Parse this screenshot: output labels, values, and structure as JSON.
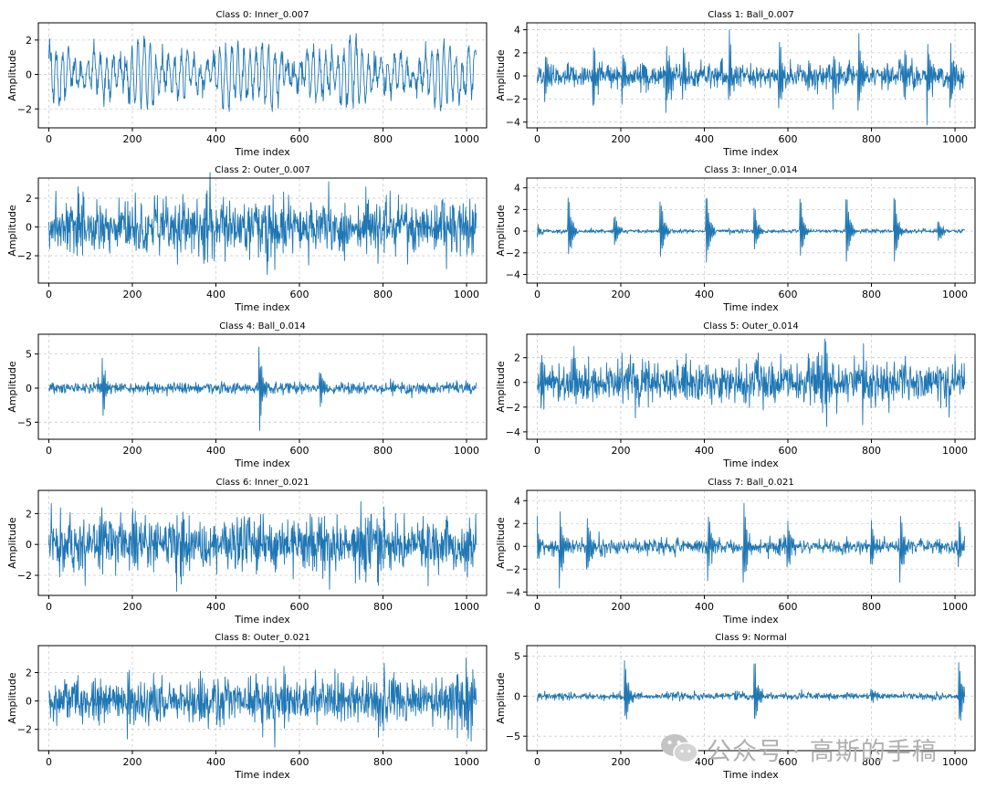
{
  "figure": {
    "watermark_text": "公众号 · 高斯的手稿",
    "colors": {
      "line": "#1f77b4",
      "grid": "#cccccc",
      "axes": "#000000"
    }
  },
  "chart_data": [
    {
      "type": "line",
      "title": "Class 0: Inner_0.007",
      "xlabel": "Time index",
      "ylabel": "Amplitude",
      "xlim": [
        -25,
        1048
      ],
      "ylim": [
        -3.1,
        3.0
      ],
      "xticks": [
        0,
        200,
        400,
        600,
        800,
        1000
      ],
      "yticks": [
        -2,
        0,
        2
      ],
      "grid": true,
      "n_points": 1024,
      "signal": {
        "kind": "sinusoidal",
        "amp": 1.0,
        "noise": 0.9,
        "bursts": []
      }
    },
    {
      "type": "line",
      "title": "Class 1: Ball_0.007",
      "xlabel": "Time index",
      "ylabel": "Amplitude",
      "xlim": [
        -25,
        1048
      ],
      "ylim": [
        -4.5,
        4.6
      ],
      "xticks": [
        0,
        200,
        400,
        600,
        800,
        1000
      ],
      "yticks": [
        -4,
        -2,
        0,
        2,
        4
      ],
      "grid": true,
      "n_points": 1024,
      "signal": {
        "kind": "noise",
        "amp": 0.55,
        "noise": 0.3,
        "bursts": [
          [
            20,
            2.0
          ],
          [
            135,
            3.1
          ],
          [
            205,
            2.4
          ],
          [
            310,
            4.0
          ],
          [
            350,
            2.6
          ],
          [
            460,
            3.0
          ],
          [
            580,
            3.7
          ],
          [
            650,
            2.4
          ],
          [
            710,
            2.6
          ],
          [
            770,
            4.3
          ],
          [
            880,
            2.8
          ],
          [
            935,
            3.6
          ],
          [
            990,
            3.3
          ]
        ]
      }
    },
    {
      "type": "line",
      "title": "Class 2: Outer_0.007",
      "xlabel": "Time index",
      "ylabel": "Amplitude",
      "xlim": [
        -25,
        1048
      ],
      "ylim": [
        -3.9,
        3.4
      ],
      "xticks": [
        0,
        200,
        400,
        600,
        800,
        1000
      ],
      "yticks": [
        -2,
        0,
        2
      ],
      "grid": true,
      "n_points": 1024,
      "signal": {
        "kind": "noise",
        "amp": 1.0,
        "noise": 0.5,
        "bursts": [
          [
            70,
            1.6
          ],
          [
            300,
            1.2
          ],
          [
            480,
            1.0
          ],
          [
            560,
            1.2
          ],
          [
            760,
            2.7
          ],
          [
            870,
            1.4
          ],
          [
            995,
            1.2
          ]
        ]
      }
    },
    {
      "type": "line",
      "title": "Class 3: Inner_0.014",
      "xlabel": "Time index",
      "ylabel": "Amplitude",
      "xlim": [
        -25,
        1048
      ],
      "ylim": [
        -4.8,
        4.9
      ],
      "xticks": [
        0,
        200,
        400,
        600,
        800,
        1000
      ],
      "yticks": [
        -4,
        -2,
        0,
        2,
        4
      ],
      "grid": true,
      "n_points": 1024,
      "signal": {
        "kind": "noise",
        "amp": 0.1,
        "noise": 0.06,
        "bursts": [
          [
            0,
            0.8
          ],
          [
            75,
            3.5
          ],
          [
            185,
            2.0
          ],
          [
            295,
            3.8
          ],
          [
            405,
            4.0
          ],
          [
            520,
            2.6
          ],
          [
            630,
            3.5
          ],
          [
            740,
            4.1
          ],
          [
            855,
            3.8
          ],
          [
            960,
            1.4
          ]
        ]
      }
    },
    {
      "type": "line",
      "title": "Class 4: Ball_0.014",
      "xlabel": "Time index",
      "ylabel": "Amplitude",
      "xlim": [
        -25,
        1048
      ],
      "ylim": [
        -7.5,
        7.9
      ],
      "xticks": [
        0,
        200,
        400,
        600,
        800,
        1000
      ],
      "yticks": [
        -5,
        0,
        5
      ],
      "grid": true,
      "n_points": 1024,
      "signal": {
        "kind": "noise",
        "amp": 0.45,
        "noise": 0.25,
        "bursts": [
          [
            10,
            1.0
          ],
          [
            130,
            5.0
          ],
          [
            505,
            7.0
          ],
          [
            650,
            3.5
          ],
          [
            820,
            1.2
          ]
        ]
      }
    },
    {
      "type": "line",
      "title": "Class 5: Outer_0.014",
      "xlabel": "Time index",
      "ylabel": "Amplitude",
      "xlim": [
        -25,
        1048
      ],
      "ylim": [
        -4.6,
        3.9
      ],
      "xticks": [
        0,
        200,
        400,
        600,
        800,
        1000
      ],
      "yticks": [
        -4,
        -2,
        0,
        2
      ],
      "grid": true,
      "n_points": 1024,
      "signal": {
        "kind": "noise",
        "amp": 0.9,
        "noise": 0.5,
        "bursts": [
          [
            10,
            3.0
          ],
          [
            90,
            2.0
          ],
          [
            310,
            1.2
          ],
          [
            560,
            1.6
          ],
          [
            690,
            3.6
          ],
          [
            780,
            2.8
          ],
          [
            980,
            1.6
          ]
        ]
      }
    },
    {
      "type": "line",
      "title": "Class 6: Inner_0.021",
      "xlabel": "Time index",
      "ylabel": "Amplitude",
      "xlim": [
        -25,
        1048
      ],
      "ylim": [
        -3.3,
        3.5
      ],
      "xticks": [
        0,
        200,
        400,
        600,
        800,
        1000
      ],
      "yticks": [
        -2,
        0,
        2
      ],
      "grid": true,
      "n_points": 1024,
      "signal": {
        "kind": "noise",
        "amp": 0.95,
        "noise": 0.5,
        "bursts": [
          [
            120,
            2.4
          ],
          [
            200,
            3.0
          ],
          [
            320,
            1.6
          ],
          [
            500,
            1.6
          ],
          [
            620,
            1.5
          ],
          [
            790,
            1.6
          ],
          [
            1000,
            1.4
          ]
        ]
      }
    },
    {
      "type": "line",
      "title": "Class 7: Ball_0.021",
      "xlabel": "Time index",
      "ylabel": "Amplitude",
      "xlim": [
        -25,
        1048
      ],
      "ylim": [
        -4.3,
        4.9
      ],
      "xticks": [
        0,
        200,
        400,
        600,
        800,
        1000
      ],
      "yticks": [
        -4,
        -2,
        0,
        2,
        4
      ],
      "grid": true,
      "n_points": 1024,
      "signal": {
        "kind": "noise",
        "amp": 0.35,
        "noise": 0.2,
        "bursts": [
          [
            0,
            2.0
          ],
          [
            55,
            4.0
          ],
          [
            120,
            2.5
          ],
          [
            410,
            3.1
          ],
          [
            495,
            4.2
          ],
          [
            600,
            2.6
          ],
          [
            800,
            2.4
          ],
          [
            870,
            4.0
          ],
          [
            1010,
            2.4
          ]
        ]
      }
    },
    {
      "type": "line",
      "title": "Class 8: Outer_0.021",
      "xlabel": "Time index",
      "ylabel": "Amplitude",
      "xlim": [
        -25,
        1048
      ],
      "ylim": [
        -3.5,
        3.9
      ],
      "xticks": [
        0,
        200,
        400,
        600,
        800,
        1000
      ],
      "yticks": [
        -2,
        0,
        2
      ],
      "grid": true,
      "n_points": 1024,
      "signal": {
        "kind": "noise",
        "amp": 0.9,
        "noise": 0.5,
        "bursts": [
          [
            190,
            3.0
          ],
          [
            360,
            1.4
          ],
          [
            560,
            2.6
          ],
          [
            800,
            1.8
          ],
          [
            1000,
            3.3
          ]
        ]
      }
    },
    {
      "type": "line",
      "title": "Class 9: Normal",
      "xlabel": "Time index",
      "ylabel": "Amplitude",
      "xlim": [
        -25,
        1048
      ],
      "ylim": [
        -6.8,
        6.3
      ],
      "xticks": [
        0,
        200,
        400,
        600,
        800,
        1000
      ],
      "yticks": [
        -5,
        0,
        5
      ],
      "grid": true,
      "n_points": 1024,
      "signal": {
        "kind": "noise",
        "amp": 0.25,
        "noise": 0.12,
        "bursts": [
          [
            0,
            0.6
          ],
          [
            210,
            5.5
          ],
          [
            520,
            5.4
          ],
          [
            800,
            1.0
          ],
          [
            1010,
            5.2
          ]
        ]
      }
    }
  ]
}
